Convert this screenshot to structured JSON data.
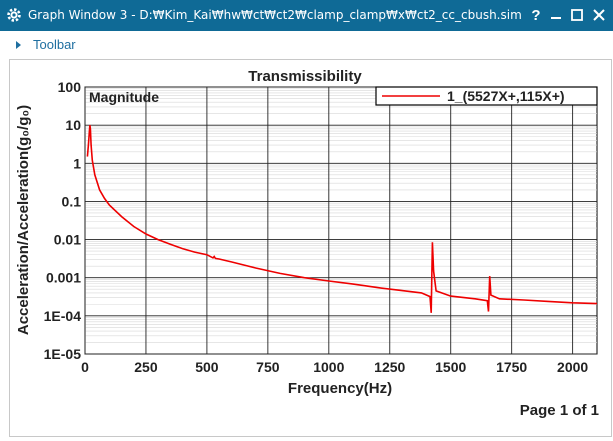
{
  "window": {
    "title": "Graph Window 3 - D:₩Kim_Kai₩hw₩ct₩ct2₩clamp_clamp₩x₩ct2_cc_cbush.sim",
    "help_label": "?"
  },
  "toolbar": {
    "label": "Toolbar"
  },
  "chart_data": {
    "type": "line",
    "title": "Transmissibility",
    "subtitle": "Magnitude",
    "xlabel": "Frequency(Hz)",
    "ylabel": "Acceleration/Acceleration(g₀/g₀)",
    "xlim": [
      0,
      2100
    ],
    "ylim": [
      1e-05,
      100
    ],
    "yscale": "log",
    "grid": true,
    "legend": "top-right",
    "x_ticks": [
      "0",
      "250",
      "500",
      "750",
      "1000",
      "1250",
      "1500",
      "1750",
      "2000"
    ],
    "y_ticks": [
      "1E-05",
      "1E-04",
      "0.001",
      "0.01",
      "0.1",
      "1",
      "10",
      "100"
    ],
    "series": [
      {
        "name": "1_(5527X+,115X+)",
        "color": "#ee0000",
        "points": [
          [
            10,
            1.5
          ],
          [
            14,
            3
          ],
          [
            18,
            7
          ],
          [
            20,
            10
          ],
          [
            22,
            8
          ],
          [
            25,
            3
          ],
          [
            30,
            1.2
          ],
          [
            40,
            0.5
          ],
          [
            60,
            0.2
          ],
          [
            80,
            0.12
          ],
          [
            100,
            0.08
          ],
          [
            150,
            0.04
          ],
          [
            200,
            0.022
          ],
          [
            250,
            0.014
          ],
          [
            300,
            0.01
          ],
          [
            350,
            0.0075
          ],
          [
            400,
            0.0058
          ],
          [
            450,
            0.0047
          ],
          [
            500,
            0.004
          ],
          [
            525,
            0.0033
          ],
          [
            530,
            0.0036
          ],
          [
            535,
            0.0032
          ],
          [
            550,
            0.0031
          ],
          [
            600,
            0.0026
          ],
          [
            700,
            0.0018
          ],
          [
            800,
            0.0013
          ],
          [
            900,
            0.001
          ],
          [
            1000,
            0.00082
          ],
          [
            1100,
            0.00068
          ],
          [
            1200,
            0.00055
          ],
          [
            1300,
            0.00046
          ],
          [
            1380,
            0.0004
          ],
          [
            1415,
            0.00032
          ],
          [
            1420,
            0.00012
          ],
          [
            1425,
            0.0085
          ],
          [
            1430,
            0.0015
          ],
          [
            1440,
            0.00045
          ],
          [
            1500,
            0.00033
          ],
          [
            1600,
            0.00028
          ],
          [
            1650,
            0.00025
          ],
          [
            1655,
            0.00013
          ],
          [
            1660,
            0.0011
          ],
          [
            1665,
            0.00035
          ],
          [
            1700,
            0.00028
          ],
          [
            1800,
            0.00026
          ],
          [
            1900,
            0.00024
          ],
          [
            2000,
            0.00022
          ],
          [
            2100,
            0.00021
          ]
        ]
      }
    ]
  },
  "footer": {
    "page_label": "Page 1 of 1"
  }
}
